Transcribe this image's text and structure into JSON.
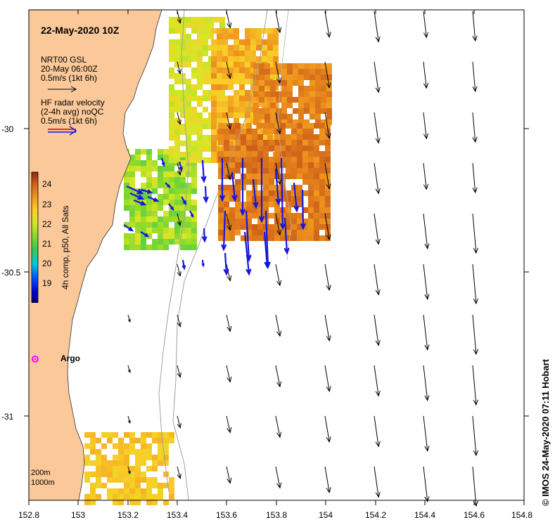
{
  "title": "22-May-2020 10Z",
  "legend": {
    "model_line1": "NRT00 GSL",
    "model_line2": "20-May 06:00Z",
    "model_line3": "0.5m/s (1kt 6h)",
    "radar_line1": "HF radar velocity",
    "radar_line2": "(2-4h avg) noQC",
    "radar_line3": "0.5m/s (1kt 6h)"
  },
  "colorbar": {
    "title": "4h comp, p50, All Sats",
    "ticks": [
      "24",
      "23",
      "22",
      "21",
      "20",
      "19"
    ],
    "range": [
      18.5,
      24.5
    ]
  },
  "argo_label": "Argo",
  "scale_labels": [
    "200m",
    "1000m"
  ],
  "credit": "© IMOS 24-May-2020 07:11 Hobart",
  "x_ticks": [
    "152.8",
    "153",
    "153.2",
    "153.4",
    "153.6",
    "153.8",
    "154",
    "154.2",
    "154.4",
    "154.6",
    "154.8"
  ],
  "y_ticks": [
    "-30",
    "-30.5",
    "-31"
  ],
  "colors": {
    "land": "#fbc899",
    "radar_arrow": "#1515e0",
    "model_arrow": "#000000",
    "argo": "#ff00ff",
    "isobath": "#a0a0a0"
  },
  "model_arrow_icon": "arrow-icon",
  "radar_arrow_icon": "double-arrow-icon"
}
